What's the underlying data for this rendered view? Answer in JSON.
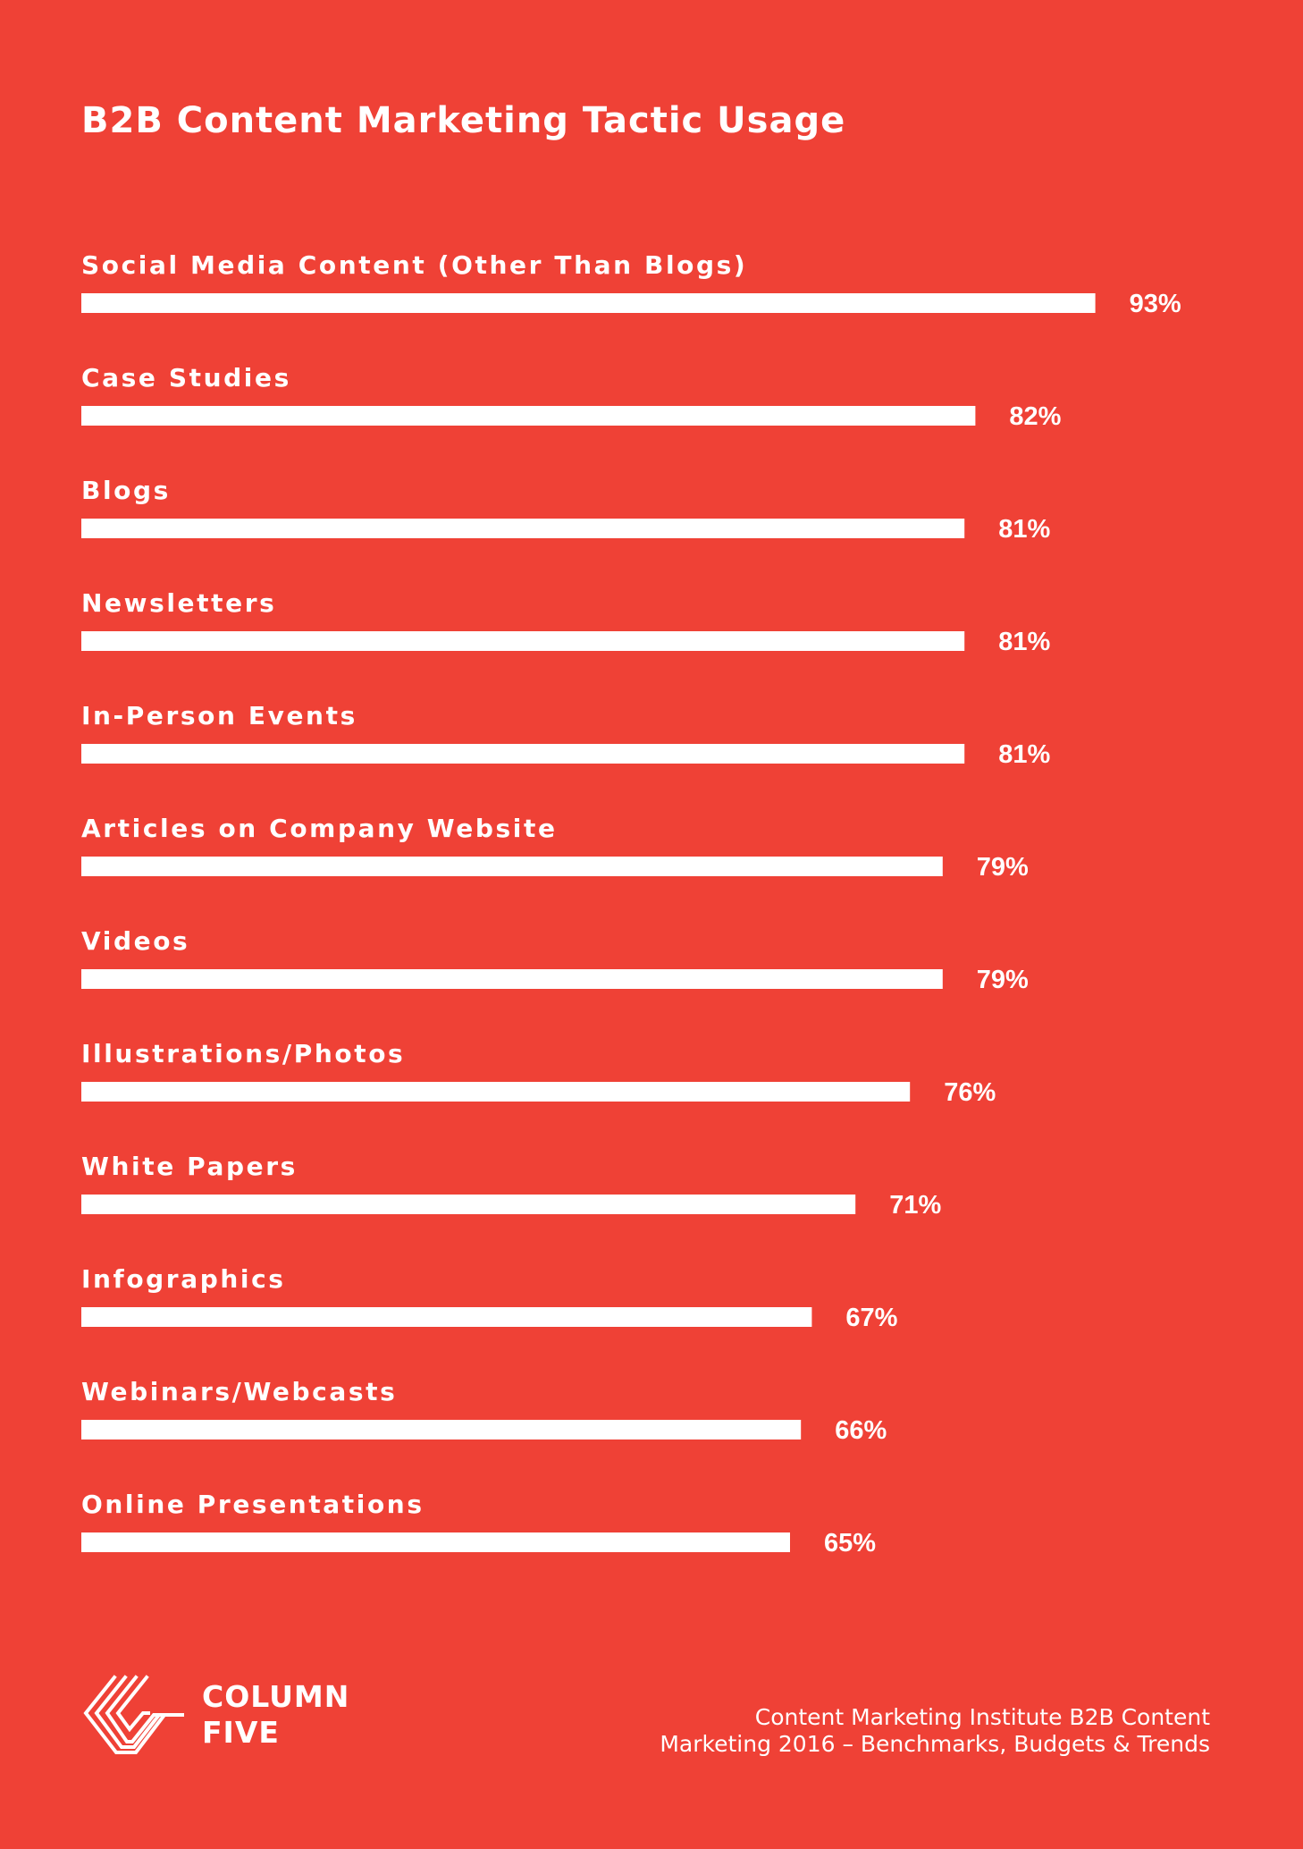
{
  "chart_data": {
    "type": "bar",
    "orientation": "horizontal",
    "title": "B2B Content Marketing Tactic Usage",
    "categories": [
      "Social Media Content (Other Than Blogs)",
      "Case Studies",
      "Blogs",
      "Newsletters",
      "In-Person Events",
      "Articles on Company Website",
      "Videos",
      "Illustrations/Photos",
      "White Papers",
      "Infographics",
      "Webinars/Webcasts",
      "Online Presentations"
    ],
    "values": [
      93,
      82,
      81,
      81,
      81,
      79,
      79,
      76,
      71,
      67,
      66,
      65
    ],
    "value_labels": [
      "93%",
      "82%",
      "81%",
      "81%",
      "81%",
      "79%",
      "79%",
      "76%",
      "71%",
      "67%",
      "66%",
      "65%"
    ],
    "xlabel": "",
    "ylabel": "",
    "grid": false,
    "colors": {
      "background": "#ef4136",
      "bar": "#ffffff",
      "text": "#ffffff"
    }
  },
  "footer": {
    "logo_icon": "column-five-logo-icon",
    "logo_line1": "COLUMN",
    "logo_line2": "FIVE",
    "source_line1": "Content Marketing Institute B2B Content",
    "source_line2": "Marketing 2016 – Benchmarks, Budgets & Trends"
  }
}
